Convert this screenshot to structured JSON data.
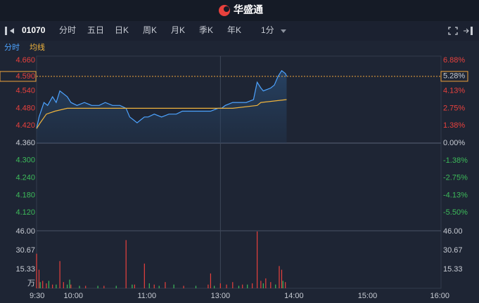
{
  "app": {
    "title": "华盛通"
  },
  "toolbar": {
    "code": "01070",
    "tabs": [
      "分时",
      "五日",
      "日K",
      "周K",
      "月K",
      "季K",
      "年K",
      "1分"
    ],
    "active": 0
  },
  "chart_data": {
    "type": "line",
    "base": 4.36,
    "xlim": [
      0,
      330
    ],
    "xticks": [
      {
        "value": 0,
        "label": "9:30"
      },
      {
        "value": 30,
        "label": "10:00"
      },
      {
        "value": 90,
        "label": "11:00"
      },
      {
        "value": 150,
        "label": "13:00"
      },
      {
        "value": 210,
        "label": "14:00"
      },
      {
        "value": 270,
        "label": "15:00"
      },
      {
        "value": 330,
        "label": "16:00"
      }
    ],
    "ylim": [
      4.06,
      4.66
    ],
    "yticks": [
      {
        "value": 4.66,
        "label": "4.660"
      },
      {
        "value": 4.54,
        "label": "4.540"
      },
      {
        "value": 4.48,
        "label": "4.480"
      },
      {
        "value": 4.42,
        "label": "4.420"
      },
      {
        "value": 4.36,
        "label": "4.360"
      },
      {
        "value": 4.3,
        "label": "4.300"
      },
      {
        "value": 4.24,
        "label": "4.240"
      },
      {
        "value": 4.18,
        "label": "4.180"
      },
      {
        "value": 4.12,
        "label": "4.120"
      }
    ],
    "y2lim": [
      -6.88,
      6.88
    ],
    "y2ticks": [
      {
        "value": 6.88,
        "label": "6.88%"
      },
      {
        "value": 4.13,
        "label": "4.13%"
      },
      {
        "value": 2.75,
        "label": "2.75%"
      },
      {
        "value": 1.38,
        "label": "1.38%"
      },
      {
        "value": 0,
        "label": "0.00%"
      },
      {
        "value": -1.38,
        "label": "-1.38%"
      },
      {
        "value": -2.75,
        "label": "-2.75%"
      },
      {
        "value": -4.13,
        "label": "-4.13%"
      },
      {
        "value": -5.5,
        "label": "-5.50%"
      }
    ],
    "last": {
      "value": 4.59,
      "label": "4.590"
    },
    "last_pct": {
      "value": 5.28,
      "label": "5.28%"
    },
    "series": [
      {
        "name": "分时",
        "color": "#4da3ff",
        "x": [
          0,
          2,
          6,
          9,
          13,
          16,
          19,
          22,
          25,
          28,
          33,
          39,
          45,
          51,
          56,
          62,
          68,
          73,
          76,
          79,
          82,
          85,
          88,
          91,
          96,
          102,
          108,
          114,
          119,
          125,
          131,
          137,
          142,
          148,
          151,
          154,
          160,
          165,
          171,
          177,
          180,
          183,
          185,
          191,
          194,
          197,
          200,
          203,
          204
        ],
        "values": [
          4.41,
          4.45,
          4.5,
          4.49,
          4.52,
          4.5,
          4.54,
          4.53,
          4.52,
          4.5,
          4.49,
          4.5,
          4.49,
          4.49,
          4.5,
          4.49,
          4.49,
          4.48,
          4.45,
          4.44,
          4.43,
          4.44,
          4.45,
          4.45,
          4.46,
          4.45,
          4.46,
          4.46,
          4.47,
          4.47,
          4.47,
          4.47,
          4.47,
          4.48,
          4.48,
          4.49,
          4.5,
          4.5,
          4.5,
          4.51,
          4.57,
          4.55,
          4.54,
          4.55,
          4.56,
          4.59,
          4.61,
          4.6,
          4.59
        ]
      },
      {
        "name": "均线",
        "color": "#f0b43c",
        "x": [
          0,
          3,
          8,
          15,
          25,
          60,
          100,
          140,
          160,
          180,
          183,
          204
        ],
        "values": [
          4.41,
          4.43,
          4.46,
          4.47,
          4.48,
          4.48,
          4.48,
          4.48,
          4.48,
          4.49,
          4.5,
          4.51
        ]
      }
    ],
    "volume": {
      "ylim": [
        0,
        46
      ],
      "yticks": [
        {
          "value": 46,
          "label": "46.00"
        },
        30.67,
        15.33
      ],
      "unit": "万",
      "series": [
        {
          "color": "#e8413d",
          "x": [
            0,
            2,
            5,
            8,
            13,
            19,
            22,
            28,
            40,
            55,
            73,
            80,
            88,
            96,
            105,
            120,
            140,
            142,
            150,
            155,
            160,
            168,
            176,
            180,
            183,
            187,
            191,
            198,
            200,
            203
          ],
          "values": [
            28,
            15,
            6,
            4,
            3,
            22,
            5,
            3,
            2,
            2,
            39,
            3,
            20,
            3,
            5,
            2,
            3,
            12,
            4,
            3,
            5,
            3,
            4,
            46,
            6,
            8,
            5,
            18,
            15,
            5
          ]
        },
        {
          "color": "#3dbb5a",
          "x": [
            3,
            10,
            16,
            25,
            27,
            35,
            50,
            65,
            78,
            92,
            100,
            112,
            130,
            145,
            165,
            172,
            185,
            195,
            201
          ],
          "values": [
            5,
            6,
            3,
            3,
            7,
            2,
            2,
            2,
            3,
            4,
            2,
            3,
            2,
            2,
            2,
            3,
            4,
            3,
            6
          ]
        }
      ]
    }
  }
}
